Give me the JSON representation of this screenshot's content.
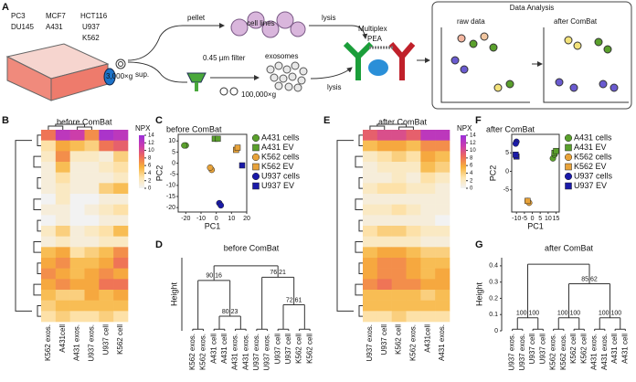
{
  "panelA": {
    "letter": "A",
    "cells": [
      "PC3",
      "DU145",
      "MCF7",
      "A431",
      "HCT116",
      "U937",
      "K562"
    ],
    "spin1": "3,000×g",
    "pellet": "pellet",
    "sup": "sup.",
    "cellLines": "cell lines",
    "lysis1": "lysis",
    "filter": "0.45 µm filter",
    "exosomes": "exosomes",
    "spin2": "100,000×g",
    "lysis2": "lysis",
    "pea": [
      "Multiplex",
      "PEA"
    ],
    "analysis": {
      "title": "Data Analysis",
      "raw": "raw data",
      "after": "after ComBat"
    }
  },
  "colorbar": {
    "label": "NPX",
    "range": [
      0,
      14
    ],
    "ticks": [
      0,
      2,
      4,
      6,
      8,
      10,
      12,
      14
    ],
    "colors": [
      "#f2f2f2",
      "#fde5b0",
      "#f7b23b",
      "#ee6a5a",
      "#c93bb0",
      "#9b30d9"
    ]
  },
  "heatmaps": [
    {
      "letter": "B",
      "title": "before ComBat",
      "columns": [
        "K562 exos.",
        "A431cell",
        "A431 exos.",
        "U937 exos.",
        "U937 cell",
        "K562 cell"
      ],
      "values": [
        [
          8,
          12,
          11,
          7,
          13,
          12
        ],
        [
          3,
          6,
          5,
          4,
          8,
          9
        ],
        [
          2,
          7,
          2,
          2,
          1,
          4
        ],
        [
          1,
          5,
          1,
          1,
          2,
          3
        ],
        [
          1,
          3,
          1,
          1,
          1,
          2
        ],
        [
          1,
          2,
          1,
          1,
          4,
          5
        ],
        [
          0,
          2,
          0,
          0,
          1,
          1
        ],
        [
          1,
          1,
          0,
          1,
          2,
          3
        ],
        [
          0,
          1,
          0,
          0,
          1,
          1
        ],
        [
          2,
          4,
          1,
          2,
          3,
          5
        ],
        [
          1,
          2,
          1,
          1,
          2,
          2
        ],
        [
          5,
          6,
          3,
          4,
          5,
          7
        ],
        [
          6,
          7,
          5,
          5,
          6,
          8
        ],
        [
          7,
          6,
          5,
          6,
          7,
          6
        ],
        [
          6,
          7,
          6,
          6,
          8,
          8
        ],
        [
          5,
          4,
          4,
          6,
          5,
          6
        ],
        [
          4,
          5,
          5,
          5,
          5,
          5
        ],
        [
          3,
          4,
          3,
          3,
          4,
          3
        ]
      ]
    },
    {
      "letter": "E",
      "title": "after ComBat",
      "columns": [
        "U937 exos.",
        "U937 cell",
        "K562 cell",
        "K562 exos.",
        "A431cell",
        "A431 exos."
      ],
      "values": [
        [
          9,
          10,
          10,
          9,
          12,
          12
        ],
        [
          5,
          6,
          6,
          5,
          7,
          7
        ],
        [
          2,
          3,
          4,
          3,
          6,
          5
        ],
        [
          1,
          2,
          2,
          2,
          5,
          4
        ],
        [
          1,
          1,
          2,
          1,
          3,
          2
        ],
        [
          2,
          3,
          3,
          2,
          2,
          1
        ],
        [
          1,
          1,
          1,
          1,
          1,
          1
        ],
        [
          2,
          2,
          3,
          2,
          1,
          1
        ],
        [
          1,
          1,
          1,
          1,
          1,
          0
        ],
        [
          3,
          4,
          4,
          3,
          2,
          2
        ],
        [
          2,
          2,
          2,
          2,
          1,
          1
        ],
        [
          5,
          6,
          6,
          5,
          4,
          4
        ],
        [
          6,
          7,
          7,
          6,
          5,
          5
        ],
        [
          6,
          7,
          7,
          6,
          5,
          6
        ],
        [
          7,
          8,
          7,
          7,
          6,
          6
        ],
        [
          5,
          5,
          5,
          5,
          4,
          5
        ],
        [
          5,
          5,
          5,
          5,
          5,
          5
        ],
        [
          3,
          3,
          4,
          3,
          3,
          3
        ]
      ]
    }
  ],
  "scatters": [
    {
      "letter": "C",
      "title": "before ComBat",
      "xlabel": "PC1",
      "ylabel": "PC2",
      "xlim": [
        -25,
        20
      ],
      "ylim": [
        -22,
        13
      ],
      "xticks": [
        -20,
        -10,
        0,
        10,
        20
      ],
      "yticks": [
        -20,
        -15,
        -10,
        -5,
        0,
        5,
        10
      ],
      "series": [
        {
          "name": "A431 cells",
          "color": "#5aa02c",
          "marker": "circle",
          "x": [
            -20,
            -21
          ],
          "y": [
            8,
            8
          ]
        },
        {
          "name": "A431 EV",
          "color": "#5aa02c",
          "marker": "square",
          "x": [
            -1,
            1
          ],
          "y": [
            11,
            11
          ]
        },
        {
          "name": "K562 cells",
          "color": "#e8a33a",
          "marker": "circle",
          "x": [
            -3,
            -4
          ],
          "y": [
            -3,
            -2
          ]
        },
        {
          "name": "K562 EV",
          "color": "#e8a33a",
          "marker": "square",
          "x": [
            13,
            14
          ],
          "y": [
            6,
            7
          ]
        },
        {
          "name": "U937 cells",
          "color": "#1a1aa8",
          "marker": "circle",
          "x": [
            2,
            3
          ],
          "y": [
            -18,
            -19
          ]
        },
        {
          "name": "U937 EV",
          "color": "#1a1aa8",
          "marker": "square",
          "x": [
            17
          ],
          "y": [
            -1
          ]
        }
      ]
    },
    {
      "letter": "F",
      "title": "after ComBat",
      "xlabel": "PC1",
      "ylabel": "PC2",
      "xlim": [
        -13,
        17
      ],
      "ylim": [
        -11,
        10
      ],
      "xticks": [
        -10,
        -5,
        0,
        5,
        10,
        15
      ],
      "yticks": [
        -5,
        0,
        5
      ],
      "series": [
        {
          "name": "A431 cells",
          "color": "#5aa02c",
          "marker": "circle",
          "x": [
            13,
            14
          ],
          "y": [
            3.5,
            4.5
          ]
        },
        {
          "name": "A431 EV",
          "color": "#5aa02c",
          "marker": "square",
          "x": [
            14,
            15
          ],
          "y": [
            5,
            5.5
          ]
        },
        {
          "name": "K562 cells",
          "color": "#e8a33a",
          "marker": "circle",
          "x": [
            -3,
            -2
          ],
          "y": [
            -8,
            -8.5
          ]
        },
        {
          "name": "K562 EV",
          "color": "#e8a33a",
          "marker": "square",
          "x": [
            -3
          ],
          "y": [
            -8
          ]
        },
        {
          "name": "U937 cells",
          "color": "#1a1aa8",
          "marker": "circle",
          "x": [
            -10,
            -10.5
          ],
          "y": [
            8,
            7.5
          ]
        },
        {
          "name": "U937 EV",
          "color": "#1a1aa8",
          "marker": "square",
          "x": [
            -10,
            -10.5
          ],
          "y": [
            4,
            4.5
          ]
        }
      ]
    }
  ],
  "dendrograms": [
    {
      "letter": "D",
      "title": "before ComBat",
      "ylabel": "Height",
      "ylim": [
        0,
        0.45
      ],
      "tree": {
        "height": 0.4,
        "children": [
          {
            "height": 0.31,
            "au": 90,
            "bp": 16,
            "children": [
              {
                "height": 0.01,
                "children": [
                  {
                    "label": "K562 exos.",
                    "color": "#e8a33a"
                  },
                  {
                    "label": "K562 exos.",
                    "color": "#e8a33a"
                  }
                ]
              },
              {
                "height": 0.09,
                "au": 80,
                "bp": 23,
                "children": [
                  {
                    "height": 0.01,
                    "children": [
                      {
                        "label": "A431 cell",
                        "color": "#5aa02c"
                      },
                      {
                        "label": "A431 cell",
                        "color": "#5aa02c"
                      }
                    ]
                  },
                  {
                    "height": 0.01,
                    "children": [
                      {
                        "label": "A431 exos.",
                        "color": "#5aa02c"
                      },
                      {
                        "label": "A431 exos.",
                        "color": "#5aa02c"
                      }
                    ]
                  }
                ]
              }
            ]
          },
          {
            "height": 0.33,
            "au": 76,
            "bp": 21,
            "children": [
              {
                "height": 0.01,
                "children": [
                  {
                    "label": "U937 exos.",
                    "color": "#1a1aa8"
                  },
                  {
                    "label": "U937 exos.",
                    "color": "#1a1aa8"
                  }
                ]
              },
              {
                "height": 0.16,
                "au": 72,
                "bp": 61,
                "children": [
                  {
                    "height": 0.01,
                    "children": [
                      {
                        "label": "U937 cell",
                        "color": "#1a1aa8"
                      },
                      {
                        "label": "U937 cell",
                        "color": "#1a1aa8"
                      }
                    ]
                  },
                  {
                    "height": 0.01,
                    "children": [
                      {
                        "label": "K562 cell",
                        "color": "#e8a33a"
                      },
                      {
                        "label": "K562 cell",
                        "color": "#e8a33a"
                      }
                    ]
                  }
                ]
              }
            ]
          }
        ]
      }
    },
    {
      "letter": "G",
      "title": "after ComBat",
      "ylabel": "Height",
      "ylim": [
        0,
        0.45
      ],
      "yticks": [
        0,
        0.1,
        0.2,
        0.3,
        0.4
      ],
      "tree": {
        "height": 0.41,
        "children": [
          {
            "height": 0.08,
            "au": 100,
            "bp": 100,
            "children": [
              {
                "height": 0.01,
                "children": [
                  {
                    "label": "U937 exos.",
                    "color": "#1a1aa8"
                  },
                  {
                    "label": "U937 exos.",
                    "color": "#1a1aa8"
                  }
                ]
              },
              {
                "height": 0.01,
                "children": [
                  {
                    "label": "U937 cell",
                    "color": "#1a1aa8"
                  },
                  {
                    "label": "U937 cell",
                    "color": "#1a1aa8"
                  }
                ]
              }
            ]
          },
          {
            "height": 0.29,
            "au": 85,
            "bp": 62,
            "children": [
              {
                "height": 0.08,
                "au": 100,
                "bp": 100,
                "children": [
                  {
                    "height": 0.01,
                    "children": [
                      {
                        "label": "K562 exos.",
                        "color": "#e8a33a"
                      },
                      {
                        "label": "K562 exos.",
                        "color": "#e8a33a"
                      }
                    ]
                  },
                  {
                    "height": 0.01,
                    "children": [
                      {
                        "label": "K562 cell",
                        "color": "#e8a33a"
                      },
                      {
                        "label": "K562 cell",
                        "color": "#e8a33a"
                      }
                    ]
                  }
                ]
              },
              {
                "height": 0.08,
                "au": 100,
                "bp": 100,
                "children": [
                  {
                    "height": 0.01,
                    "children": [
                      {
                        "label": "A431 exos.",
                        "color": "#5aa02c"
                      },
                      {
                        "label": "A431 exos.",
                        "color": "#5aa02c"
                      }
                    ]
                  },
                  {
                    "height": 0.01,
                    "children": [
                      {
                        "label": "A431 cell",
                        "color": "#5aa02c"
                      },
                      {
                        "label": "A431 cell",
                        "color": "#5aa02c"
                      }
                    ]
                  }
                ]
              }
            ]
          }
        ]
      }
    }
  ]
}
